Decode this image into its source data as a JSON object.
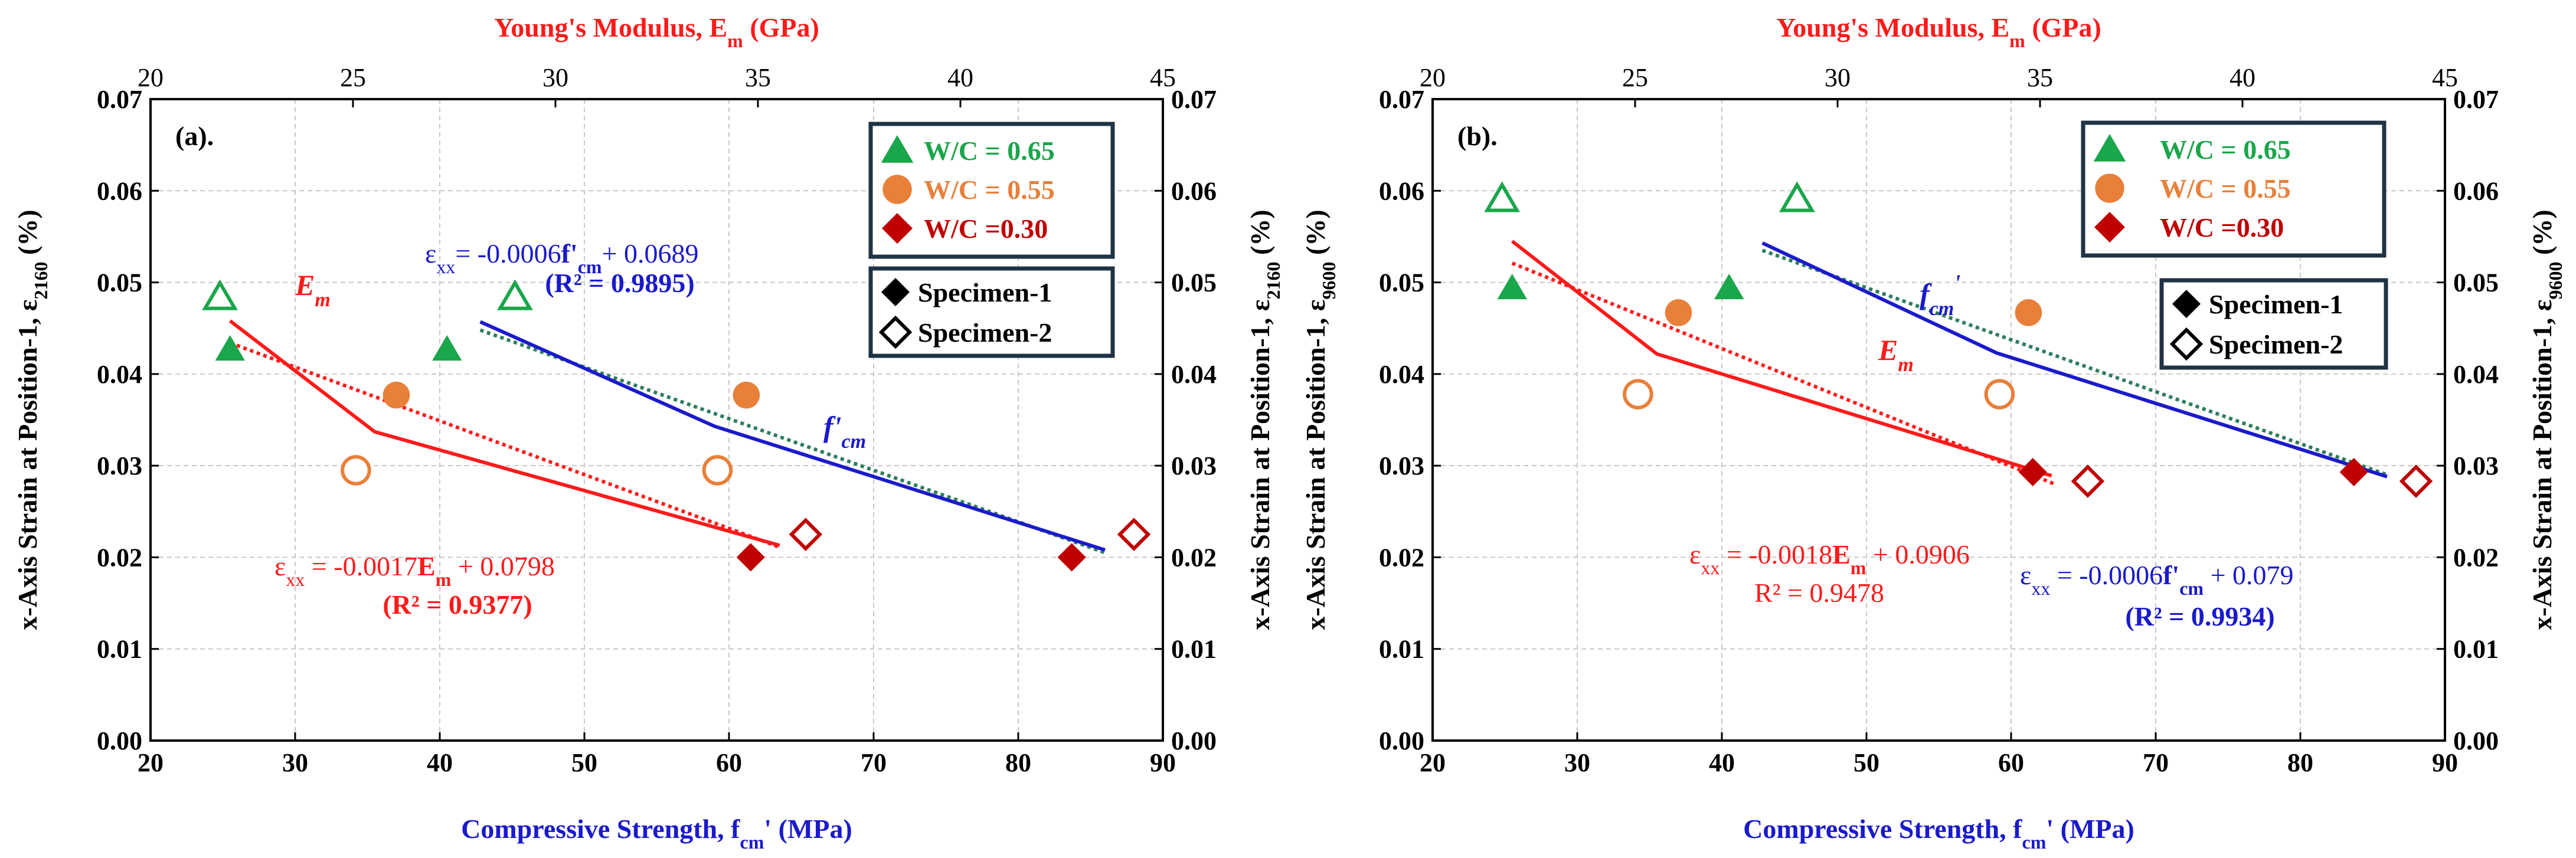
{
  "chart_data": [
    {
      "type": "scatter",
      "panel_label": "(a).",
      "xlabel": "Compressive Strength, f",
      "xlabel_sub": "cm",
      "xlabel_tail": "' (MPa)",
      "x2label": "Young's Modulus, E",
      "x2label_sub": "m",
      "x2label_tail": " (GPa)",
      "ylabel": "x-Axis Strain at Position-1, ε",
      "ylabel_sub": "2160",
      "ylabel_tail": " (%)",
      "x_ticks": [
        "20",
        "30",
        "40",
        "50",
        "60",
        "70",
        "80",
        "90"
      ],
      "x2_ticks": [
        "20",
        "25",
        "30",
        "35",
        "40",
        "45"
      ],
      "y_ticks": [
        "0.00",
        "0.01",
        "0.02",
        "0.03",
        "0.04",
        "0.05",
        "0.06",
        "0.07"
      ],
      "xlim": [
        20,
        90
      ],
      "x2lim": [
        20,
        45
      ],
      "ylim": [
        0,
        0.07
      ],
      "colors": {
        "wc065": "#1aa64a",
        "wc055": "#e8803a",
        "wc030": "#c00000",
        "em": "#ff1a1a",
        "fcm": "#1a1acc",
        "trend": "#2e7d5a"
      },
      "points": [
        {
          "group": "wc065",
          "specimen": 1,
          "x": 25.5,
          "y": 0.0427
        },
        {
          "group": "wc065",
          "specimen": 2,
          "x": 24.8,
          "y": 0.0484
        },
        {
          "group": "wc065",
          "specimen": 1,
          "x": 40.5,
          "y": 0.0427
        },
        {
          "group": "wc065",
          "specimen": 2,
          "x": 45.2,
          "y": 0.0484
        },
        {
          "group": "wc055",
          "specimen": 1,
          "x": 37.0,
          "y": 0.0377
        },
        {
          "group": "wc055",
          "specimen": 2,
          "x": 34.2,
          "y": 0.0295
        },
        {
          "group": "wc055",
          "specimen": 1,
          "x": 61.2,
          "y": 0.0377
        },
        {
          "group": "wc055",
          "specimen": 2,
          "x": 59.2,
          "y": 0.0295
        },
        {
          "group": "wc030",
          "specimen": 1,
          "x": 61.5,
          "y": 0.02
        },
        {
          "group": "wc030",
          "specimen": 2,
          "x": 65.3,
          "y": 0.0225
        },
        {
          "group": "wc030",
          "specimen": 1,
          "x": 83.7,
          "y": 0.02
        },
        {
          "group": "wc030",
          "specimen": 2,
          "x": 88.0,
          "y": 0.0225
        }
      ],
      "em_curve": [
        [
          25.5,
          0.0458
        ],
        [
          35.5,
          0.0337
        ],
        [
          63.5,
          0.0213
        ]
      ],
      "em_trend": [
        [
          25.5,
          0.0434
        ],
        [
          63.5,
          0.0211
        ]
      ],
      "fcm_curve": [
        [
          42.8,
          0.0457
        ],
        [
          59.0,
          0.0343
        ],
        [
          86.0,
          0.0208
        ]
      ],
      "fcm_trend": [
        [
          42.8,
          0.0448
        ],
        [
          86.0,
          0.0205
        ]
      ],
      "eq_fcm": {
        "prefix": "ε",
        "sub": "xx",
        "mid": "= -0.0006",
        "bold": "f'",
        "sub2": "cm",
        "tail": "+ 0.0689",
        "r2": "(R² = 0.9895)"
      },
      "eq_em": {
        "prefix": "ε",
        "sub": "xx",
        "mid": " = -0.0017",
        "bold": "E",
        "sub2": "m",
        "tail": " + 0.0798",
        "r2": "(R² = 0.9377)"
      },
      "label_em": {
        "main": "E",
        "sub": "m"
      },
      "label_fcm": {
        "main": "f'",
        "sub": "cm"
      },
      "legend1": [
        "W/C = 0.65",
        "W/C = 0.55",
        "W/C =0.30"
      ],
      "legend2": [
        "Specimen-1",
        "Specimen-2"
      ]
    },
    {
      "type": "scatter",
      "panel_label": "(b).",
      "xlabel": "Compressive Strength, f",
      "xlabel_sub": "cm",
      "xlabel_tail": "' (MPa)",
      "x2label": "Young's Modulus, E",
      "x2label_sub": "m",
      "x2label_tail": " (GPa)",
      "ylabel": "x-Axis Strain at Position-1, ε",
      "ylabel_sub": "9600",
      "ylabel_tail": " (%)",
      "x_ticks": [
        "20",
        "30",
        "40",
        "50",
        "60",
        "70",
        "80",
        "90"
      ],
      "x2_ticks": [
        "20",
        "25",
        "30",
        "35",
        "40",
        "45"
      ],
      "y_ticks": [
        "0.00",
        "0.01",
        "0.02",
        "0.03",
        "0.04",
        "0.05",
        "0.06",
        "0.07"
      ],
      "xlim": [
        20,
        90
      ],
      "x2lim": [
        20,
        45
      ],
      "ylim": [
        0,
        0.07
      ],
      "colors": {
        "wc065": "#1aa64a",
        "wc055": "#e8803a",
        "wc030": "#c00000",
        "em": "#ff1a1a",
        "fcm": "#1a1acc",
        "trend": "#2e7d5a"
      },
      "points": [
        {
          "group": "wc065",
          "specimen": 1,
          "x": 25.5,
          "y": 0.0494
        },
        {
          "group": "wc065",
          "specimen": 2,
          "x": 24.8,
          "y": 0.0591
        },
        {
          "group": "wc065",
          "specimen": 1,
          "x": 40.5,
          "y": 0.0494
        },
        {
          "group": "wc065",
          "specimen": 2,
          "x": 45.2,
          "y": 0.0591
        },
        {
          "group": "wc055",
          "specimen": 1,
          "x": 37.0,
          "y": 0.0467
        },
        {
          "group": "wc055",
          "specimen": 2,
          "x": 34.2,
          "y": 0.0378
        },
        {
          "group": "wc055",
          "specimen": 1,
          "x": 61.2,
          "y": 0.0467
        },
        {
          "group": "wc055",
          "specimen": 2,
          "x": 59.2,
          "y": 0.0378
        },
        {
          "group": "wc030",
          "specimen": 1,
          "x": 61.5,
          "y": 0.0293
        },
        {
          "group": "wc030",
          "specimen": 2,
          "x": 65.3,
          "y": 0.0283
        },
        {
          "group": "wc030",
          "specimen": 1,
          "x": 83.7,
          "y": 0.0293
        },
        {
          "group": "wc030",
          "specimen": 2,
          "x": 88.0,
          "y": 0.0283
        }
      ],
      "em_curve": [
        [
          25.5,
          0.0545
        ],
        [
          35.5,
          0.0422
        ],
        [
          62.8,
          0.0289
        ]
      ],
      "em_trend": [
        [
          25.5,
          0.0521
        ],
        [
          63.0,
          0.028
        ]
      ],
      "fcm_curve": [
        [
          42.8,
          0.0543
        ],
        [
          59.0,
          0.0423
        ],
        [
          86.0,
          0.0288
        ]
      ],
      "fcm_trend": [
        [
          42.8,
          0.0535
        ],
        [
          86.0,
          0.029
        ]
      ],
      "eq_fcm": {
        "prefix": "ε",
        "sub": "xx",
        "mid": " = -0.0006",
        "bold": "f'",
        "sub2": "cm",
        "tail": " + 0.079",
        "r2": "(R² = 0.9934)"
      },
      "eq_em": {
        "prefix": "ε",
        "sub": "xx",
        "mid": " = -0.0018",
        "bold": "E",
        "sub2": "m",
        "tail": " + 0.0906",
        "r2": "R² = 0.9478"
      },
      "label_em": {
        "main": "E",
        "sub": "m"
      },
      "label_fcm": {
        "main": "f",
        "sub": "cm",
        "tail": "'"
      },
      "legend1": [
        "W/C = 0.65",
        "W/C = 0.55",
        "W/C =0.30"
      ],
      "legend2": [
        "Specimen-1",
        "Specimen-2"
      ]
    }
  ]
}
